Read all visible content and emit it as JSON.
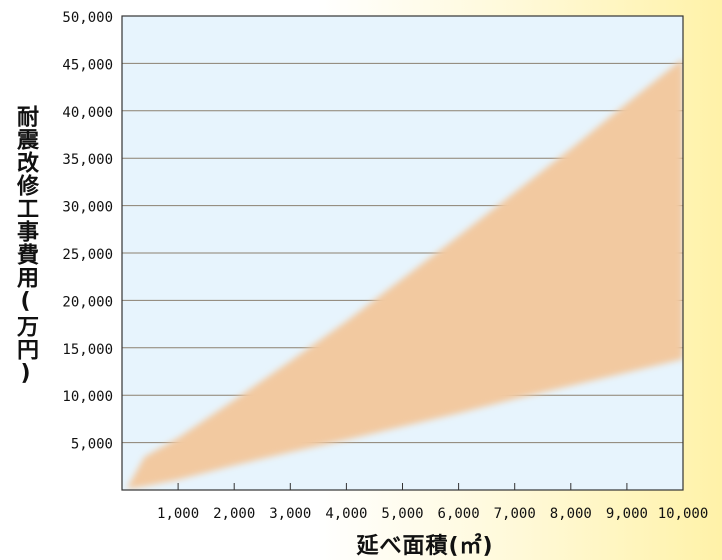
{
  "chart_data": {
    "type": "area",
    "title": "",
    "xlabel": "延べ面積(㎡)",
    "ylabel": "耐震改修工事費用(万円)",
    "x_ticks": [
      1000,
      2000,
      3000,
      4000,
      5000,
      6000,
      7000,
      8000,
      9000,
      10000
    ],
    "x_tick_labels": [
      "1,000",
      "2,000",
      "3,000",
      "4,000",
      "5,000",
      "6,000",
      "7,000",
      "8,000",
      "9,000",
      "10,000"
    ],
    "y_ticks": [
      5000,
      10000,
      15000,
      20000,
      25000,
      30000,
      35000,
      40000,
      45000,
      50000
    ],
    "y_tick_labels": [
      "5,000",
      "10,000",
      "15,000",
      "20,000",
      "25,000",
      "30,000",
      "35,000",
      "40,000",
      "45,000",
      "50,000"
    ],
    "xlim": [
      0,
      10000
    ],
    "ylim": [
      0,
      50000
    ],
    "grid": "horizontal",
    "series": [
      {
        "x": [
          100,
          400,
          1000,
          2000,
          3000,
          4000,
          5000,
          6000,
          7000,
          8000,
          9000,
          10000
        ],
        "upper": [
          300,
          3500,
          5500,
          9500,
          13600,
          17800,
          22300,
          26800,
          31400,
          36000,
          40800,
          45500
        ],
        "lower": [
          100,
          400,
          1100,
          2600,
          4000,
          5300,
          6700,
          8100,
          9600,
          11000,
          12400,
          13800
        ],
        "color": "#f2c9a0"
      }
    ],
    "colors": {
      "plot_background": "#e7f4fd",
      "band": "#f2c9a0",
      "grid": "#8b8070",
      "frame": "#333333"
    }
  }
}
